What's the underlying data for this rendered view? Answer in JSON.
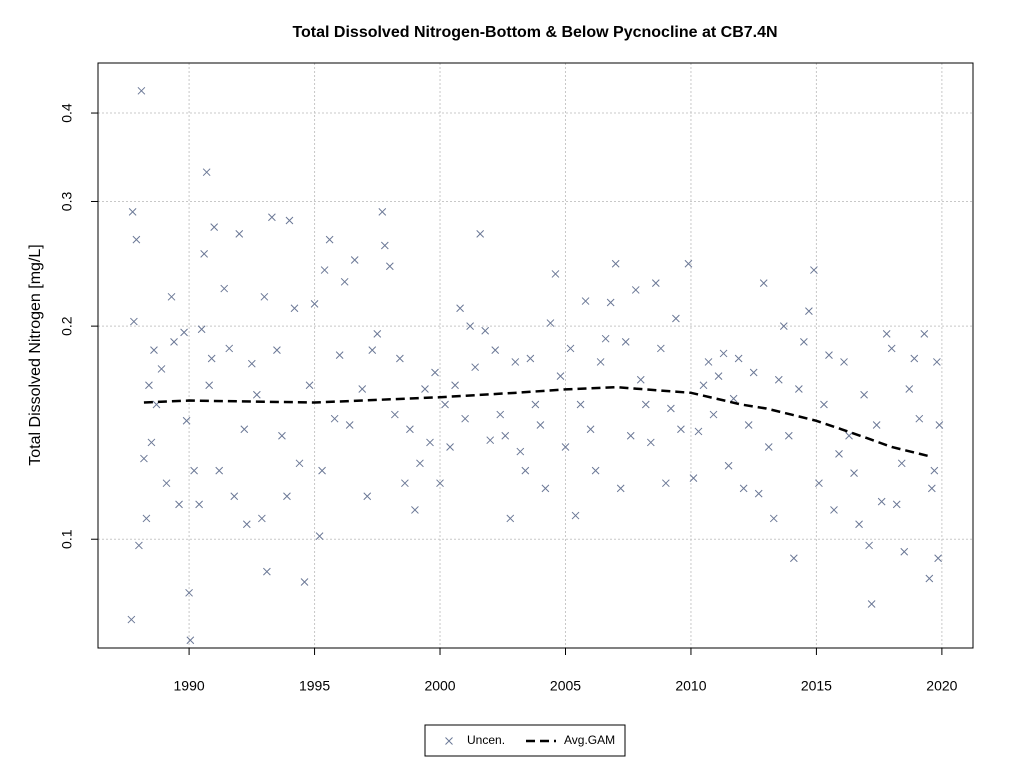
{
  "chart_data": {
    "type": "scatter",
    "title": "Total Dissolved Nitrogen-Bottom & Below Pycnocline at CB7.4N",
    "ylabel": "Total Dissolved Nitrogen [mg/L]",
    "xlim": [
      1986.37,
      2021.24
    ],
    "ylim": [
      0.0702,
      0.4707
    ],
    "ylog": true,
    "grid": true,
    "legend": "bottom",
    "xticks": [
      1990,
      1995,
      2000,
      2005,
      2010,
      2015,
      2020
    ],
    "yticks": [
      0.1,
      0.2,
      0.3,
      0.4
    ],
    "series": [
      {
        "name": "Uncen.",
        "type": "scatter",
        "color": "#6b7896",
        "x": [
          1987.7,
          1987.75,
          1987.8,
          1987.9,
          1988.0,
          1988.1,
          1988.2,
          1988.3,
          1988.4,
          1988.5,
          1988.6,
          1988.7,
          1988.9,
          1989.1,
          1989.3,
          1989.4,
          1989.6,
          1989.8,
          1989.9,
          1990.0,
          1990.05,
          1990.2,
          1990.4,
          1990.5,
          1990.6,
          1990.7,
          1990.8,
          1990.9,
          1991.0,
          1991.2,
          1991.4,
          1991.6,
          1991.8,
          1992.0,
          1992.2,
          1992.3,
          1992.5,
          1992.7,
          1992.9,
          1993.0,
          1993.1,
          1993.3,
          1993.5,
          1993.7,
          1993.9,
          1994.0,
          1994.2,
          1994.4,
          1994.6,
          1994.8,
          1995.0,
          1995.2,
          1995.3,
          1995.4,
          1995.6,
          1995.8,
          1996.0,
          1996.2,
          1996.4,
          1996.6,
          1996.9,
          1997.1,
          1997.3,
          1997.5,
          1997.7,
          1997.8,
          1998.0,
          1998.2,
          1998.4,
          1998.6,
          1998.8,
          1999.0,
          1999.2,
          1999.4,
          1999.6,
          1999.8,
          2000.0,
          2000.2,
          2000.4,
          2000.6,
          2000.8,
          2001.0,
          2001.2,
          2001.4,
          2001.6,
          2001.8,
          2002.0,
          2002.2,
          2002.4,
          2002.6,
          2002.8,
          2003.0,
          2003.2,
          2003.4,
          2003.6,
          2003.8,
          2004.0,
          2004.2,
          2004.4,
          2004.6,
          2004.8,
          2005.0,
          2005.2,
          2005.4,
          2005.6,
          2005.8,
          2006.0,
          2006.2,
          2006.4,
          2006.6,
          2006.8,
          2007.0,
          2007.2,
          2007.4,
          2007.6,
          2007.8,
          2008.0,
          2008.2,
          2008.4,
          2008.6,
          2008.8,
          2009.0,
          2009.2,
          2009.4,
          2009.6,
          2009.9,
          2010.1,
          2010.3,
          2010.5,
          2010.7,
          2010.9,
          2011.1,
          2011.3,
          2011.5,
          2011.7,
          2011.9,
          2012.1,
          2012.3,
          2012.5,
          2012.7,
          2012.9,
          2013.1,
          2013.3,
          2013.5,
          2013.7,
          2013.9,
          2014.1,
          2014.3,
          2014.5,
          2014.7,
          2014.9,
          2015.1,
          2015.3,
          2015.5,
          2015.7,
          2015.9,
          2016.1,
          2016.3,
          2016.5,
          2016.7,
          2016.9,
          2017.1,
          2017.2,
          2017.4,
          2017.6,
          2017.8,
          2018.0,
          2018.2,
          2018.4,
          2018.5,
          2018.7,
          2018.9,
          2019.1,
          2019.3,
          2019.5,
          2019.6,
          2019.7,
          2019.8,
          2019.85,
          2019.9
        ],
        "values": [
          0.077,
          0.29,
          0.203,
          0.265,
          0.098,
          0.43,
          0.13,
          0.107,
          0.165,
          0.137,
          0.185,
          0.155,
          0.174,
          0.12,
          0.22,
          0.19,
          0.112,
          0.196,
          0.147,
          0.084,
          0.072,
          0.125,
          0.112,
          0.198,
          0.253,
          0.33,
          0.165,
          0.18,
          0.276,
          0.125,
          0.226,
          0.186,
          0.115,
          0.27,
          0.143,
          0.105,
          0.177,
          0.16,
          0.107,
          0.22,
          0.09,
          0.285,
          0.185,
          0.14,
          0.115,
          0.282,
          0.212,
          0.128,
          0.087,
          0.165,
          0.215,
          0.101,
          0.125,
          0.24,
          0.265,
          0.148,
          0.182,
          0.231,
          0.145,
          0.248,
          0.163,
          0.115,
          0.185,
          0.195,
          0.29,
          0.26,
          0.243,
          0.15,
          0.18,
          0.12,
          0.143,
          0.11,
          0.128,
          0.163,
          0.137,
          0.172,
          0.12,
          0.155,
          0.135,
          0.165,
          0.212,
          0.148,
          0.2,
          0.175,
          0.27,
          0.197,
          0.138,
          0.185,
          0.15,
          0.14,
          0.107,
          0.178,
          0.133,
          0.125,
          0.18,
          0.155,
          0.145,
          0.118,
          0.202,
          0.237,
          0.17,
          0.135,
          0.186,
          0.108,
          0.155,
          0.217,
          0.143,
          0.125,
          0.178,
          0.192,
          0.216,
          0.245,
          0.118,
          0.19,
          0.14,
          0.225,
          0.168,
          0.155,
          0.137,
          0.23,
          0.186,
          0.12,
          0.153,
          0.205,
          0.143,
          0.245,
          0.122,
          0.142,
          0.165,
          0.178,
          0.15,
          0.17,
          0.183,
          0.127,
          0.158,
          0.18,
          0.118,
          0.145,
          0.172,
          0.116,
          0.23,
          0.135,
          0.107,
          0.168,
          0.2,
          0.14,
          0.094,
          0.163,
          0.19,
          0.21,
          0.24,
          0.12,
          0.155,
          0.182,
          0.11,
          0.132,
          0.178,
          0.14,
          0.124,
          0.105,
          0.16,
          0.098,
          0.081,
          0.145,
          0.113,
          0.195,
          0.186,
          0.112,
          0.128,
          0.096,
          0.163,
          0.18,
          0.148,
          0.195,
          0.088,
          0.118,
          0.125,
          0.178,
          0.094,
          0.145
        ]
      },
      {
        "name": "Avg.GAM",
        "type": "line",
        "dashed": true,
        "color": "#000000",
        "x": [
          1988.2,
          1990,
          1995,
          2000,
          2003,
          2005,
          2007,
          2008,
          2010,
          2011,
          2012,
          2013,
          2014,
          2015,
          2016,
          2017,
          2018,
          2019.5
        ],
        "values": [
          0.156,
          0.157,
          0.156,
          0.1587,
          0.161,
          0.1628,
          0.164,
          0.163,
          0.161,
          0.158,
          0.155,
          0.153,
          0.15,
          0.147,
          0.143,
          0.139,
          0.135,
          0.131
        ]
      }
    ]
  }
}
